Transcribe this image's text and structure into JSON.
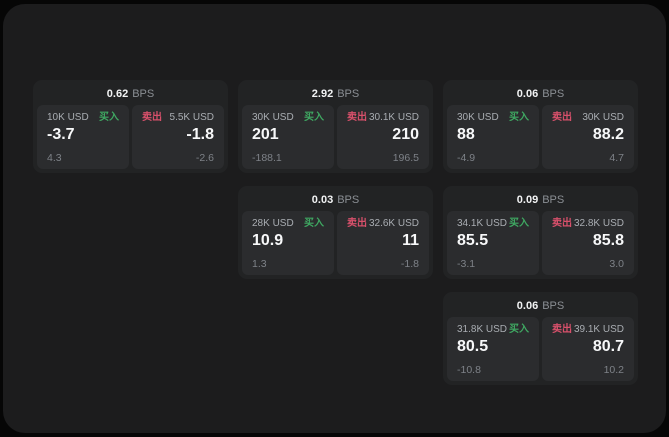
{
  "labels": {
    "bps": "BPS",
    "buy": "买入",
    "sell": "卖出"
  },
  "colors": {
    "buy_green": "#3fa862",
    "sell_red": "#d8506b",
    "container_bg": "#1c1c1d",
    "card_bg": "#222324",
    "panel_bg": "#2b2c2e"
  },
  "cards": [
    {
      "row": 1,
      "col": 1,
      "bps": "0.62",
      "buy": {
        "amount": "10K USD",
        "value": "-3.7",
        "sub": "4.3"
      },
      "sell": {
        "amount": "5.5K USD",
        "value": "-1.8",
        "sub": "-2.6"
      }
    },
    {
      "row": 1,
      "col": 2,
      "bps": "2.92",
      "buy": {
        "amount": "30K USD",
        "value": "201",
        "sub": "-188.1"
      },
      "sell": {
        "amount": "30.1K USD",
        "value": "210",
        "sub": "196.5"
      }
    },
    {
      "row": 1,
      "col": 3,
      "bps": "0.06",
      "buy": {
        "amount": "30K USD",
        "value": "88",
        "sub": "-4.9"
      },
      "sell": {
        "amount": "30K USD",
        "value": "88.2",
        "sub": "4.7"
      }
    },
    {
      "row": 2,
      "col": 2,
      "bps": "0.03",
      "buy": {
        "amount": "28K USD",
        "value": "10.9",
        "sub": "1.3"
      },
      "sell": {
        "amount": "32.6K USD",
        "value": "11",
        "sub": "-1.8"
      }
    },
    {
      "row": 2,
      "col": 3,
      "bps": "0.09",
      "buy": {
        "amount": "34.1K USD",
        "value": "85.5",
        "sub": "-3.1"
      },
      "sell": {
        "amount": "32.8K USD",
        "value": "85.8",
        "sub": "3.0"
      }
    },
    {
      "row": 3,
      "col": 3,
      "bps": "0.06",
      "buy": {
        "amount": "31.8K USD",
        "value": "80.5",
        "sub": "-10.8"
      },
      "sell": {
        "amount": "39.1K USD",
        "value": "80.7",
        "sub": "10.2"
      }
    }
  ]
}
